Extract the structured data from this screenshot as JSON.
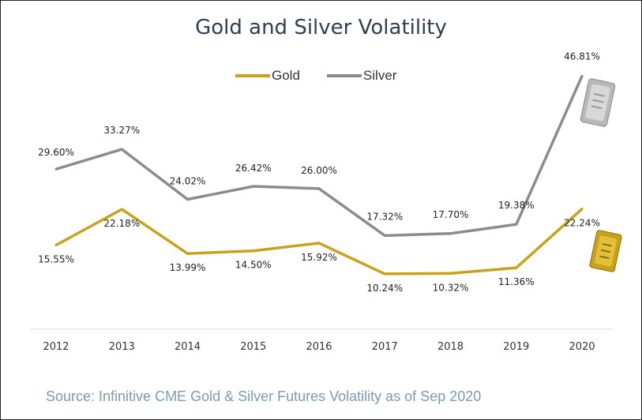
{
  "chart_data": {
    "type": "line",
    "title": "Gold and Silver Volatility",
    "categories": [
      "2012",
      "2013",
      "2014",
      "2015",
      "2016",
      "2017",
      "2018",
      "2019",
      "2020"
    ],
    "series": [
      {
        "name": "Gold",
        "color": "#c9a21a",
        "values": [
          15.55,
          22.18,
          13.99,
          14.5,
          15.92,
          10.24,
          10.32,
          11.36,
          22.24
        ],
        "labels": [
          "15.55%",
          "22.18%",
          "13.99%",
          "14.50%",
          "15.92%",
          "10.24%",
          "10.32%",
          "11.36%",
          "22.24%"
        ]
      },
      {
        "name": "Silver",
        "color": "#8c8c8c",
        "values": [
          29.6,
          33.27,
          24.02,
          26.42,
          26.0,
          17.32,
          17.7,
          19.38,
          46.81
        ],
        "labels": [
          "29.60%",
          "33.27%",
          "24.02%",
          "26.42%",
          "26.00%",
          "17.32%",
          "17.70%",
          "19.38%",
          "46.81%"
        ]
      }
    ],
    "ylim": [
      0,
      50
    ],
    "grid": false,
    "legend_position": "top-center",
    "source": "Source: Infinitive CME Gold & Silver Futures Volatility as of Sep 2020"
  }
}
